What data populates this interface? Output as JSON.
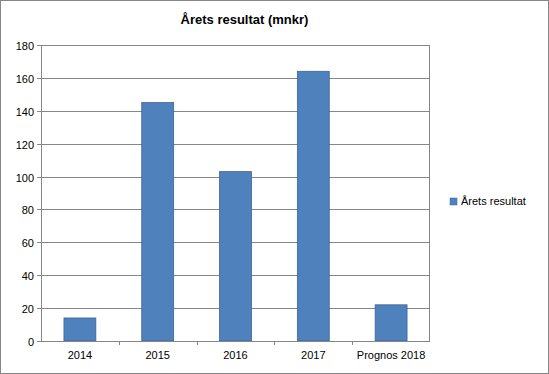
{
  "chart_data": {
    "type": "bar",
    "title": "Årets resultat (mnkr)",
    "categories": [
      "2014",
      "2015",
      "2016",
      "2017",
      "Prognos 2018"
    ],
    "series": [
      {
        "name": "Årets resultat",
        "color": "#4f81bd",
        "values": [
          14,
          145,
          103,
          164,
          22
        ]
      }
    ],
    "ylim": [
      0,
      180
    ],
    "yticks": [
      0,
      20,
      40,
      60,
      80,
      100,
      120,
      140,
      160,
      180
    ],
    "grid": true,
    "legend": "right"
  }
}
